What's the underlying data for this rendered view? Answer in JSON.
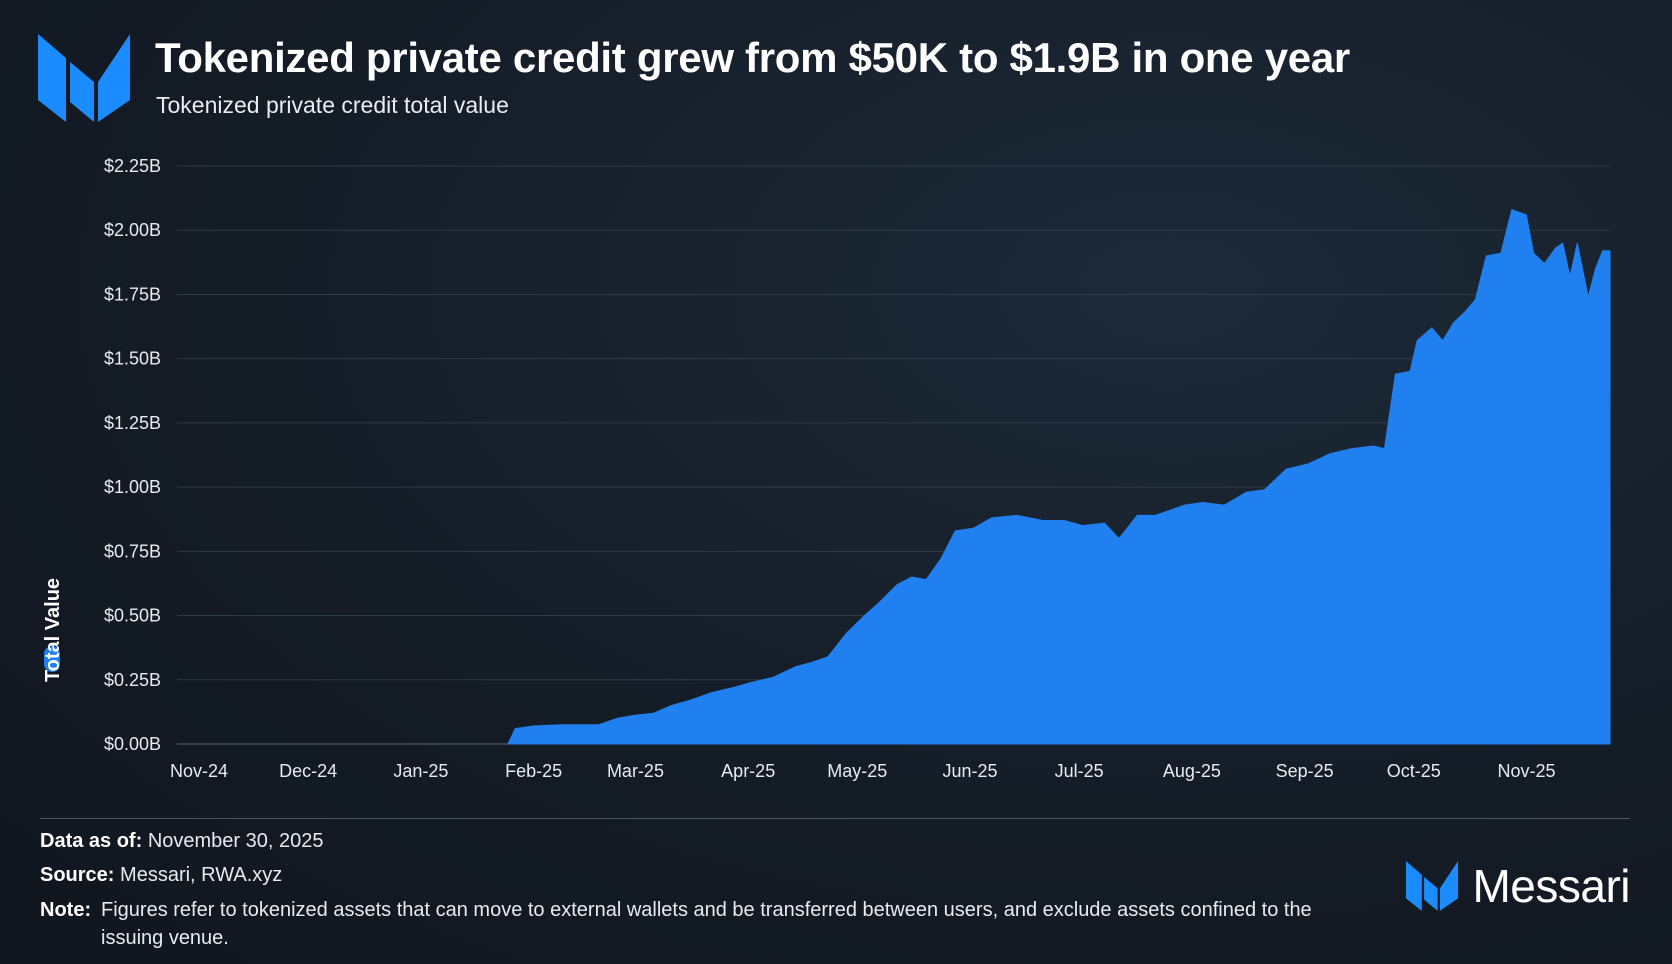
{
  "title": "Tokenized private credit grew from $50K to $1.9B in one year",
  "subtitle": "Tokenized private credit total value",
  "chart_data": {
    "type": "area",
    "title": "Tokenized private credit grew from $50K to $1.9B in one year",
    "subtitle": "Tokenized private credit total value",
    "ylabel": "Total Value",
    "ylim": [
      0,
      2.25
    ],
    "y_ticks": [
      0,
      0.25,
      0.5,
      0.75,
      1.0,
      1.25,
      1.5,
      1.75,
      2.0,
      2.25
    ],
    "y_tick_labels": [
      "$0.00B",
      "$0.25B",
      "$0.50B",
      "$0.75B",
      "$1.00B",
      "$1.25B",
      "$1.50B",
      "$1.75B",
      "$2.00B",
      "$2.25B"
    ],
    "x_tick_labels": [
      "Nov-24",
      "Dec-24",
      "Jan-25",
      "Feb-25",
      "Mar-25",
      "Apr-25",
      "May-25",
      "Jun-25",
      "Jul-25",
      "Aug-25",
      "Sep-25",
      "Oct-25",
      "Nov-25"
    ],
    "grid": true,
    "legend": "left-vertical",
    "series": [
      {
        "name": "Total Value",
        "color": "#2080f0",
        "x": [
          "2025-01-31",
          "2025-02-02",
          "2025-02-07",
          "2025-02-15",
          "2025-02-25",
          "2025-03-02",
          "2025-03-06",
          "2025-03-12",
          "2025-03-17",
          "2025-03-22",
          "2025-03-28",
          "2025-04-03",
          "2025-04-08",
          "2025-04-14",
          "2025-04-20",
          "2025-04-25",
          "2025-04-29",
          "2025-05-04",
          "2025-05-09",
          "2025-05-13",
          "2025-05-18",
          "2025-05-22",
          "2025-05-26",
          "2025-05-30",
          "2025-06-03",
          "2025-06-08",
          "2025-06-13",
          "2025-06-20",
          "2025-06-27",
          "2025-07-03",
          "2025-07-08",
          "2025-07-14",
          "2025-07-18",
          "2025-07-23",
          "2025-07-28",
          "2025-08-05",
          "2025-08-10",
          "2025-08-16",
          "2025-08-22",
          "2025-08-27",
          "2025-09-02",
          "2025-09-08",
          "2025-09-14",
          "2025-09-20",
          "2025-09-26",
          "2025-09-29",
          "2025-10-02",
          "2025-10-06",
          "2025-10-08",
          "2025-10-12",
          "2025-10-15",
          "2025-10-18",
          "2025-10-21",
          "2025-10-24",
          "2025-10-27",
          "2025-10-31",
          "2025-11-03",
          "2025-11-07",
          "2025-11-09",
          "2025-11-12",
          "2025-11-15",
          "2025-11-17",
          "2025-11-19",
          "2025-11-21",
          "2025-11-24",
          "2025-11-26",
          "2025-11-28",
          "2025-11-30"
        ],
        "values": [
          5e-05,
          0.06,
          0.07,
          0.075,
          0.075,
          0.1,
          0.11,
          0.12,
          0.15,
          0.17,
          0.2,
          0.22,
          0.24,
          0.26,
          0.3,
          0.32,
          0.34,
          0.43,
          0.5,
          0.55,
          0.62,
          0.65,
          0.64,
          0.72,
          0.83,
          0.84,
          0.88,
          0.89,
          0.87,
          0.87,
          0.85,
          0.86,
          0.8,
          0.89,
          0.89,
          0.93,
          0.94,
          0.93,
          0.98,
          0.99,
          1.07,
          1.09,
          1.13,
          1.15,
          1.16,
          1.15,
          1.44,
          1.45,
          1.57,
          1.62,
          1.57,
          1.64,
          1.68,
          1.73,
          1.9,
          1.91,
          2.08,
          2.06,
          1.91,
          1.87,
          1.93,
          1.95,
          1.82,
          1.95,
          1.74,
          1.85,
          1.92,
          1.92
        ]
      }
    ]
  },
  "footer": {
    "data_as_of_label": "Data as of:",
    "data_as_of_value": "November 30, 2025",
    "source_label": "Source:",
    "source_value": "Messari, RWA.xyz",
    "note_label": "Note:",
    "note_value": "Figures refer to tokenized assets that can move to external wallets and be transferred between users, and exclude assets confined to the issuing venue."
  },
  "brand": {
    "name": "Messari",
    "color": "#2a8cff"
  }
}
